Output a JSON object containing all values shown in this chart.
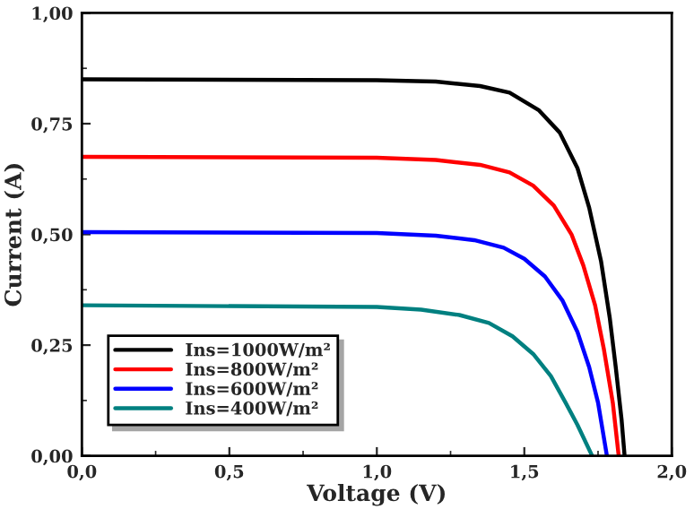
{
  "chart_data": {
    "type": "line",
    "xlabel": "Voltage (V)",
    "ylabel": "Current (A)",
    "xlim": [
      0,
      2.0
    ],
    "ylim": [
      0,
      1.0
    ],
    "xticks": [
      {
        "value": 0,
        "label": "0,0"
      },
      {
        "value": 0.5,
        "label": "0,5"
      },
      {
        "value": 1.0,
        "label": "1,0"
      },
      {
        "value": 1.5,
        "label": "1,5"
      },
      {
        "value": 2.0,
        "label": "2,0"
      }
    ],
    "yticks": [
      {
        "value": 0,
        "label": "0,00"
      },
      {
        "value": 0.25,
        "label": "0,25"
      },
      {
        "value": 0.5,
        "label": "0,50"
      },
      {
        "value": 0.75,
        "label": "0,75"
      },
      {
        "value": 1.0,
        "label": "1,00"
      }
    ],
    "grid": false,
    "legend": "bottom left",
    "marker": "none",
    "line_style": "solid",
    "series": [
      {
        "name": "Ins=1000W/m²",
        "color": "#000000",
        "x": [
          0,
          1.0,
          1.2,
          1.35,
          1.45,
          1.55,
          1.62,
          1.68,
          1.72,
          1.76,
          1.79,
          1.81,
          1.83,
          1.84
        ],
        "values": [
          0.85,
          0.848,
          0.845,
          0.835,
          0.82,
          0.78,
          0.73,
          0.65,
          0.56,
          0.44,
          0.31,
          0.2,
          0.08,
          0
        ]
      },
      {
        "name": "Ins=800W/m²",
        "color": "#ff0000",
        "x": [
          0,
          1.0,
          1.2,
          1.35,
          1.45,
          1.53,
          1.6,
          1.66,
          1.7,
          1.74,
          1.77,
          1.8,
          1.82
        ],
        "values": [
          0.675,
          0.673,
          0.668,
          0.657,
          0.64,
          0.61,
          0.565,
          0.5,
          0.43,
          0.34,
          0.24,
          0.12,
          0
        ]
      },
      {
        "name": "Ins=600W/m²",
        "color": "#0000ff",
        "x": [
          0,
          1.0,
          1.2,
          1.33,
          1.43,
          1.5,
          1.57,
          1.63,
          1.68,
          1.72,
          1.75,
          1.78
        ],
        "values": [
          0.505,
          0.503,
          0.497,
          0.487,
          0.47,
          0.445,
          0.405,
          0.35,
          0.28,
          0.2,
          0.12,
          0
        ]
      },
      {
        "name": "Ins=400W/m²",
        "color": "#008080",
        "x": [
          0,
          1.0,
          1.15,
          1.28,
          1.38,
          1.46,
          1.53,
          1.59,
          1.64,
          1.68,
          1.73
        ],
        "values": [
          0.34,
          0.336,
          0.33,
          0.318,
          0.3,
          0.27,
          0.23,
          0.18,
          0.12,
          0.07,
          0
        ]
      }
    ]
  }
}
